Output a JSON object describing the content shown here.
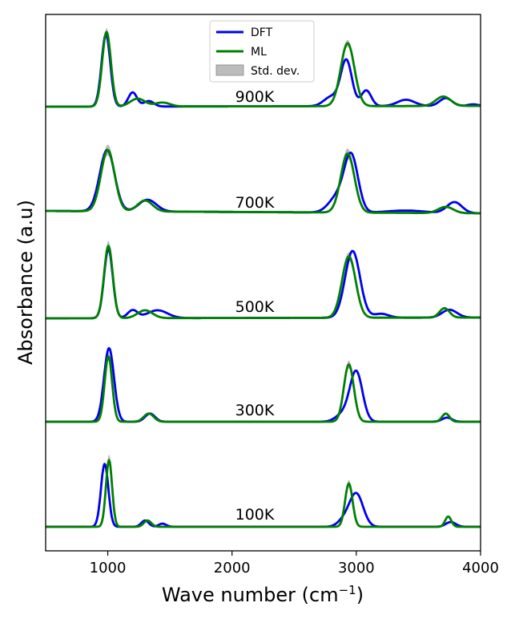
{
  "chart_data": {
    "type": "line",
    "xlabel": "Wave number (cm",
    "xlabel_sup": "−1",
    "xlabel_close": ")",
    "ylabel": "Absorbance (a.u)",
    "xlim": [
      500,
      4000
    ],
    "xticks": [
      "1000",
      "2000",
      "3000",
      "4000"
    ],
    "xtick_values": [
      1000,
      2000,
      3000,
      4000
    ],
    "yticks": false,
    "grid": false,
    "legend_position": "top-center",
    "colors": {
      "DFT": "#0000ee",
      "ML": "#008000",
      "Std. dev.": "#a0a0a0"
    },
    "legend": [
      {
        "name": "DFT",
        "style": "line"
      },
      {
        "name": "ML",
        "style": "line"
      },
      {
        "name": "Std. dev.",
        "style": "band"
      }
    ],
    "panels": [
      {
        "label": "900K",
        "baseline": {
          "start": 0.03,
          "end": 0.04
        },
        "DFT_peaks": [
          [
            985,
            0.92,
            35
          ],
          [
            1200,
            0.18,
            35
          ],
          [
            1330,
            0.07,
            40
          ],
          [
            2920,
            0.58,
            45
          ],
          [
            2800,
            0.12,
            60
          ],
          [
            3080,
            0.2,
            40
          ],
          [
            3400,
            0.08,
            70
          ],
          [
            3720,
            0.1,
            50
          ],
          [
            3940,
            0.02,
            40
          ]
        ],
        "ML_peaks": [
          [
            990,
            0.95,
            35
          ],
          [
            1240,
            0.1,
            60
          ],
          [
            1440,
            0.05,
            60
          ],
          [
            2930,
            0.8,
            55
          ],
          [
            3700,
            0.12,
            60
          ]
        ],
        "std": 0.03
      },
      {
        "label": "700K",
        "baseline": {
          "start": 0.04,
          "end": 0.01
        },
        "DFT_peaks": [
          [
            995,
            0.78,
            60
          ],
          [
            1320,
            0.15,
            70
          ],
          [
            2960,
            0.7,
            55
          ],
          [
            2850,
            0.2,
            70
          ],
          [
            3400,
            0.03,
            150
          ],
          [
            3790,
            0.14,
            60
          ]
        ],
        "ML_peaks": [
          [
            1000,
            0.78,
            55
          ],
          [
            1300,
            0.14,
            60
          ],
          [
            2930,
            0.75,
            55
          ],
          [
            3720,
            0.08,
            60
          ]
        ],
        "std": 0.05
      },
      {
        "label": "500K",
        "baseline": {
          "start": 0.0,
          "end": 0.01
        },
        "DFT_peaks": [
          [
            1005,
            0.88,
            35
          ],
          [
            1200,
            0.1,
            40
          ],
          [
            1400,
            0.1,
            80
          ],
          [
            2970,
            0.85,
            60
          ],
          [
            3200,
            0.05,
            60
          ],
          [
            3750,
            0.1,
            60
          ]
        ],
        "ML_peaks": [
          [
            1005,
            0.92,
            35
          ],
          [
            1300,
            0.1,
            60
          ],
          [
            2940,
            0.78,
            55
          ],
          [
            3710,
            0.12,
            40
          ]
        ],
        "std": 0.04
      },
      {
        "label": "300K",
        "baseline": {
          "start": 0.0,
          "end": 0.0
        },
        "DFT_peaks": [
          [
            1010,
            0.9,
            40
          ],
          [
            1340,
            0.1,
            40
          ],
          [
            3000,
            0.6,
            50
          ],
          [
            2900,
            0.1,
            60
          ],
          [
            3730,
            0.05,
            40
          ]
        ],
        "ML_peaks": [
          [
            1005,
            0.8,
            30
          ],
          [
            1330,
            0.1,
            40
          ],
          [
            2940,
            0.7,
            40
          ],
          [
            3720,
            0.1,
            30
          ]
        ],
        "std": 0.04
      },
      {
        "label": "100K",
        "baseline": {
          "start": 0.0,
          "end": 0.0
        },
        "DFT_peaks": [
          [
            975,
            0.8,
            30
          ],
          [
            1300,
            0.08,
            30
          ],
          [
            1440,
            0.04,
            30
          ],
          [
            3000,
            0.42,
            55
          ],
          [
            2900,
            0.08,
            50
          ],
          [
            3760,
            0.06,
            40
          ]
        ],
        "ML_peaks": [
          [
            1010,
            0.85,
            25
          ],
          [
            1320,
            0.08,
            30
          ],
          [
            2940,
            0.55,
            30
          ],
          [
            3740,
            0.13,
            25
          ]
        ],
        "std": 0.05
      }
    ]
  }
}
